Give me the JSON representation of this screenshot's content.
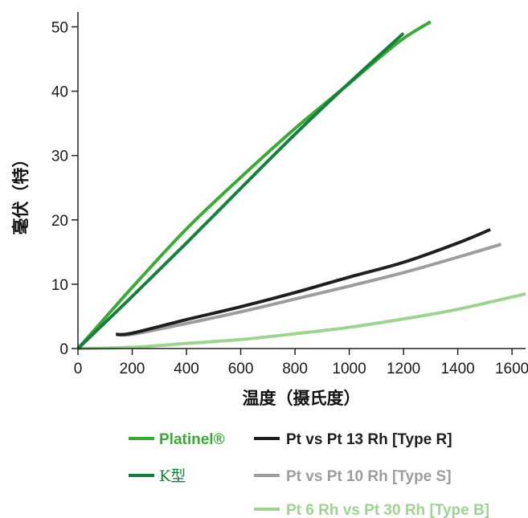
{
  "chart_data": {
    "type": "line",
    "xlabel": "温度（摄氏度）",
    "ylabel": "毫伏（特）",
    "xlim": [
      0,
      1650
    ],
    "ylim": [
      0,
      50
    ],
    "xticks": [
      0,
      200,
      400,
      600,
      800,
      1000,
      1200,
      1400,
      1600
    ],
    "yticks": [
      0,
      10,
      20,
      30,
      40,
      50
    ],
    "grid": false,
    "legend_position": "bottom",
    "series": [
      {
        "name": "Platinel®",
        "color": "#3aaa35",
        "x": [
          0,
          200,
          400,
          600,
          800,
          1000,
          1100,
          1200,
          1300
        ],
        "y": [
          0,
          9.5,
          18.6,
          26.6,
          34.2,
          41.2,
          44.8,
          48.2,
          50.8
        ]
      },
      {
        "name": "K型",
        "color": "#157f3c",
        "x": [
          0,
          200,
          400,
          600,
          800,
          1000,
          1200
        ],
        "y": [
          0,
          8.1,
          16.4,
          24.9,
          33.3,
          41.3,
          49
        ]
      },
      {
        "name": "Pt vs Pt 13 Rh [Type R]",
        "color": "#1e1e1e",
        "x": [
          140,
          200,
          400,
          600,
          800,
          1000,
          1200,
          1400,
          1520
        ],
        "y": [
          2.2,
          2.4,
          4.5,
          6.5,
          8.7,
          11.1,
          13.4,
          16.4,
          18.5
        ]
      },
      {
        "name": "Pt vs Pt 10 Rh [Type S]",
        "color": "#9d9d9d",
        "x": [
          140,
          200,
          400,
          600,
          800,
          1000,
          1200,
          1400,
          1560
        ],
        "y": [
          2.2,
          2.2,
          3.9,
          5.7,
          7.7,
          9.7,
          11.8,
          14.2,
          16.2
        ]
      },
      {
        "name": "Pt 6 Rh vs Pt 30 Rh [Type B]",
        "color": "#9fd391",
        "x": [
          0,
          200,
          400,
          600,
          800,
          1000,
          1200,
          1400,
          1650
        ],
        "y": [
          0,
          0.2,
          0.8,
          1.4,
          2.3,
          3.3,
          4.6,
          6.1,
          8.5
        ]
      }
    ]
  }
}
